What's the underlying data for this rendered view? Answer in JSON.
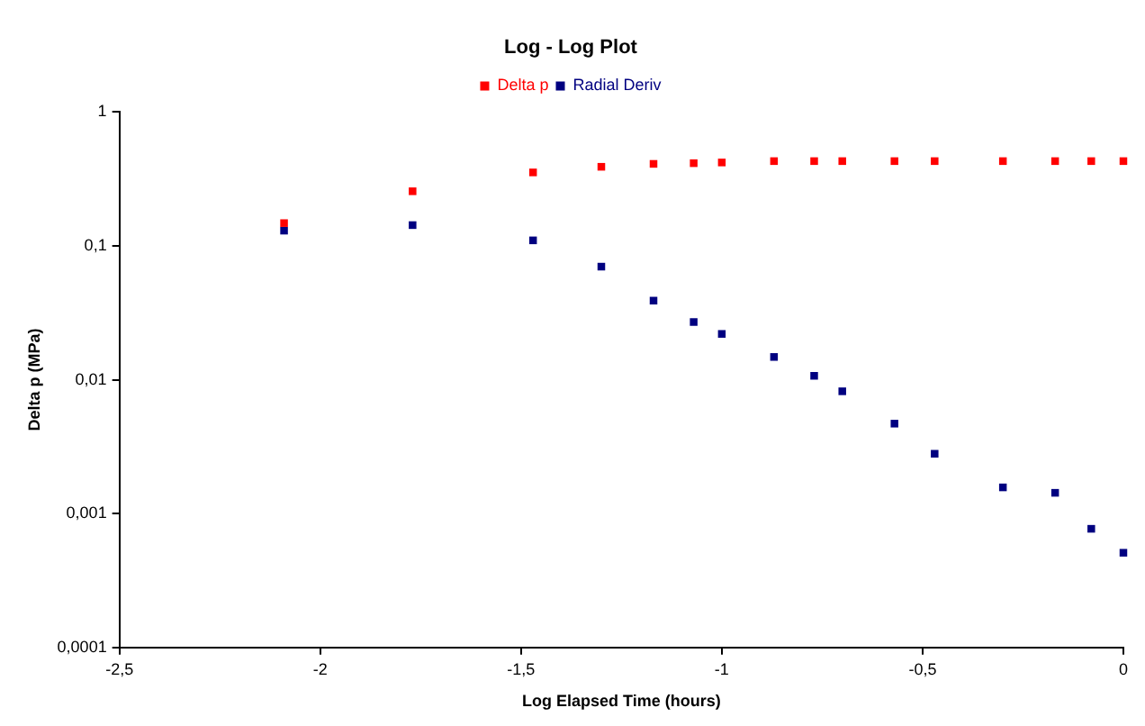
{
  "chart_data": {
    "type": "scatter",
    "title": "Log - Log Plot",
    "xlabel": "Log Elapsed Time (hours)",
    "ylabel": "Delta p (MPa)",
    "x": [
      -2.09,
      -1.77,
      -1.47,
      -1.3,
      -1.17,
      -1.07,
      -1.0,
      -0.87,
      -0.77,
      -0.7,
      -0.57,
      -0.47,
      -0.3,
      -0.17,
      -0.08,
      0
    ],
    "series": [
      {
        "name": "Delta p",
        "color": "#ff0000",
        "values": [
          0.148,
          0.256,
          0.354,
          0.39,
          0.41,
          0.415,
          0.42,
          0.43,
          0.43,
          0.43,
          0.43,
          0.43,
          0.43,
          0.43,
          0.43,
          0.43
        ]
      },
      {
        "name": "Radial Deriv",
        "color": "#000080",
        "values": [
          0.13,
          0.143,
          0.11,
          0.07,
          0.039,
          0.027,
          0.022,
          0.0148,
          0.0107,
          0.0082,
          0.0047,
          0.0028,
          0.00157,
          0.00143,
          0.00077,
          0.00051
        ]
      }
    ],
    "xlim": [
      -2.5,
      0
    ],
    "xticks": [
      {
        "value": -2.5,
        "label": "-2,5"
      },
      -2,
      {
        "value": -1.5,
        "label": "-1,5"
      },
      -1,
      {
        "value": -0.5,
        "label": "-0,5"
      },
      0
    ],
    "ylim": [
      0.0001,
      1
    ],
    "yticks": [
      {
        "value": 0.0001,
        "label": "0,0001"
      },
      {
        "value": 0.001,
        "label": "0,001"
      },
      {
        "value": 0.01,
        "label": "0,01"
      },
      {
        "value": 0.1,
        "label": "0,1"
      },
      1
    ],
    "log": "y",
    "grid": false,
    "legend": "top",
    "marker": "square"
  }
}
